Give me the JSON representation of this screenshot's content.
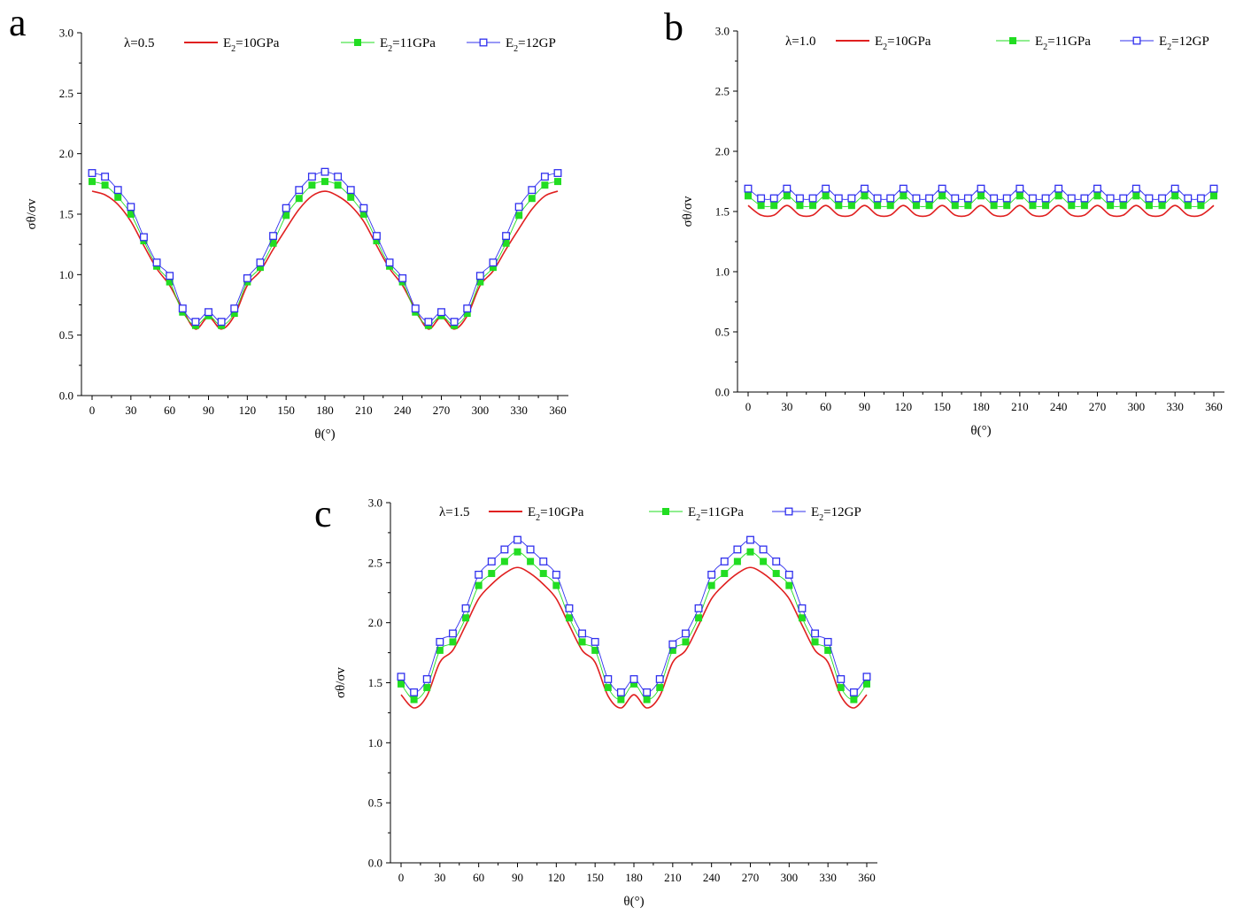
{
  "figure": {
    "x_axis_label": "θ(°)",
    "y_axis_label": "σθ/σv"
  },
  "chart_data": [
    {
      "type": "line",
      "panel": "a",
      "lambda_label": "λ=0.5",
      "xlim": [
        0,
        360
      ],
      "ylim": [
        0.0,
        3.0
      ],
      "x_ticks": [
        0,
        30,
        60,
        90,
        120,
        150,
        180,
        210,
        240,
        270,
        300,
        330,
        360
      ],
      "y_ticks": [
        "0.0",
        "0.5",
        "1.0",
        "1.5",
        "2.0",
        "2.5",
        "3.0"
      ],
      "xlabel": "θ(°)",
      "ylabel": "σθ/σv",
      "x": [
        0,
        10,
        20,
        30,
        40,
        50,
        60,
        70,
        80,
        90,
        100,
        110,
        120,
        130,
        140,
        150,
        160,
        170,
        180,
        190,
        200,
        210,
        220,
        230,
        240,
        250,
        260,
        270,
        280,
        290,
        300,
        310,
        320,
        330,
        340,
        350,
        360
      ],
      "series": [
        {
          "name": "E2=10GPa",
          "legend_main": "E",
          "legend_sub": "2",
          "legend_rest": "=10GPa",
          "color": "#e02020",
          "marker": "none",
          "values": [
            1.69,
            1.66,
            1.58,
            1.44,
            1.24,
            1.05,
            0.91,
            0.71,
            0.55,
            0.65,
            0.55,
            0.66,
            0.91,
            1.03,
            1.21,
            1.38,
            1.54,
            1.65,
            1.69,
            1.65,
            1.57,
            1.44,
            1.24,
            1.05,
            0.91,
            0.71,
            0.55,
            0.65,
            0.55,
            0.66,
            0.91,
            1.03,
            1.21,
            1.38,
            1.54,
            1.65,
            1.69
          ]
        },
        {
          "name": "E2=11GPa",
          "legend_main": "E",
          "legend_sub": "2",
          "legend_rest": "=11GPa",
          "color": "#22dd22",
          "marker": "filled-square",
          "values": [
            1.77,
            1.74,
            1.64,
            1.5,
            1.28,
            1.07,
            0.94,
            0.69,
            0.58,
            0.66,
            0.58,
            0.68,
            0.94,
            1.06,
            1.26,
            1.49,
            1.63,
            1.74,
            1.77,
            1.74,
            1.64,
            1.5,
            1.28,
            1.07,
            0.94,
            0.69,
            0.58,
            0.66,
            0.58,
            0.68,
            0.94,
            1.06,
            1.26,
            1.49,
            1.63,
            1.74,
            1.77
          ]
        },
        {
          "name": "E2=12GP",
          "legend_main": "E",
          "legend_sub": "2",
          "legend_rest": "=12GP",
          "color": "#3030ee",
          "marker": "open-square",
          "values": [
            1.84,
            1.81,
            1.7,
            1.56,
            1.31,
            1.1,
            0.99,
            0.72,
            0.61,
            0.69,
            0.61,
            0.72,
            0.97,
            1.1,
            1.32,
            1.55,
            1.7,
            1.81,
            1.85,
            1.81,
            1.7,
            1.55,
            1.32,
            1.1,
            0.97,
            0.72,
            0.61,
            0.69,
            0.61,
            0.72,
            0.99,
            1.1,
            1.32,
            1.56,
            1.7,
            1.81,
            1.84
          ]
        }
      ]
    },
    {
      "type": "line",
      "panel": "b",
      "lambda_label": "λ=1.0",
      "xlim": [
        0,
        360
      ],
      "ylim": [
        0.0,
        3.0
      ],
      "x_ticks": [
        0,
        30,
        60,
        90,
        120,
        150,
        180,
        210,
        240,
        270,
        300,
        330,
        360
      ],
      "y_ticks": [
        "0.0",
        "0.5",
        "1.0",
        "1.5",
        "2.0",
        "2.5",
        "3.0"
      ],
      "xlabel": "θ(°)",
      "ylabel": "σθ/σv",
      "x": [
        0,
        10,
        20,
        30,
        40,
        50,
        60,
        70,
        80,
        90,
        100,
        110,
        120,
        130,
        140,
        150,
        160,
        170,
        180,
        190,
        200,
        210,
        220,
        230,
        240,
        250,
        260,
        270,
        280,
        290,
        300,
        310,
        320,
        330,
        340,
        350,
        360
      ],
      "series": [
        {
          "name": "E2=10GPa",
          "legend_main": "E",
          "legend_sub": "2",
          "legend_rest": "=10GPa",
          "color": "#e02020",
          "marker": "none",
          "values": [
            1.55,
            1.47,
            1.47,
            1.55,
            1.47,
            1.47,
            1.55,
            1.47,
            1.47,
            1.55,
            1.47,
            1.47,
            1.55,
            1.47,
            1.47,
            1.55,
            1.47,
            1.47,
            1.55,
            1.47,
            1.47,
            1.55,
            1.47,
            1.47,
            1.55,
            1.47,
            1.47,
            1.55,
            1.47,
            1.47,
            1.55,
            1.47,
            1.47,
            1.55,
            1.47,
            1.47,
            1.55
          ]
        },
        {
          "name": "E2=11GPa",
          "legend_main": "E",
          "legend_sub": "2",
          "legend_rest": "=11GPa",
          "color": "#22dd22",
          "marker": "filled-square",
          "values": [
            1.63,
            1.55,
            1.55,
            1.63,
            1.55,
            1.55,
            1.63,
            1.55,
            1.55,
            1.63,
            1.55,
            1.55,
            1.63,
            1.55,
            1.55,
            1.63,
            1.55,
            1.55,
            1.63,
            1.55,
            1.55,
            1.63,
            1.55,
            1.55,
            1.63,
            1.55,
            1.55,
            1.63,
            1.55,
            1.55,
            1.63,
            1.55,
            1.55,
            1.63,
            1.55,
            1.55,
            1.63
          ]
        },
        {
          "name": "E2=12GP",
          "legend_main": "E",
          "legend_sub": "2",
          "legend_rest": "=12GP",
          "color": "#3030ee",
          "marker": "open-square",
          "values": [
            1.69,
            1.61,
            1.61,
            1.69,
            1.61,
            1.61,
            1.69,
            1.61,
            1.61,
            1.69,
            1.61,
            1.61,
            1.69,
            1.61,
            1.61,
            1.69,
            1.61,
            1.61,
            1.69,
            1.61,
            1.61,
            1.69,
            1.61,
            1.61,
            1.69,
            1.61,
            1.61,
            1.69,
            1.61,
            1.61,
            1.69,
            1.61,
            1.61,
            1.69,
            1.61,
            1.61,
            1.69
          ]
        }
      ]
    },
    {
      "type": "line",
      "panel": "c",
      "lambda_label": "λ=1.5",
      "xlim": [
        0,
        360
      ],
      "ylim": [
        0.0,
        3.0
      ],
      "x_ticks": [
        0,
        30,
        60,
        90,
        120,
        150,
        180,
        210,
        240,
        270,
        300,
        330,
        360
      ],
      "y_ticks": [
        "0.0",
        "0.5",
        "1.0",
        "1.5",
        "2.0",
        "2.5",
        "3.0"
      ],
      "xlabel": "θ(°)",
      "ylabel": "σθ/σv",
      "x": [
        0,
        10,
        20,
        30,
        40,
        50,
        60,
        70,
        80,
        90,
        100,
        110,
        120,
        130,
        140,
        150,
        160,
        170,
        180,
        190,
        200,
        210,
        220,
        230,
        240,
        250,
        260,
        270,
        280,
        290,
        300,
        310,
        320,
        330,
        340,
        350,
        360
      ],
      "series": [
        {
          "name": "E2=10GPa",
          "legend_main": "E",
          "legend_sub": "2",
          "legend_rest": "=10GPa",
          "color": "#e02020",
          "marker": "none",
          "values": [
            1.4,
            1.29,
            1.39,
            1.67,
            1.77,
            1.98,
            2.2,
            2.32,
            2.41,
            2.46,
            2.41,
            2.32,
            2.2,
            1.98,
            1.77,
            1.67,
            1.39,
            1.29,
            1.4,
            1.29,
            1.39,
            1.67,
            1.77,
            1.98,
            2.2,
            2.32,
            2.41,
            2.46,
            2.41,
            2.32,
            2.2,
            1.98,
            1.77,
            1.67,
            1.39,
            1.29,
            1.4
          ]
        },
        {
          "name": "E2=11GPa",
          "legend_main": "E",
          "legend_sub": "2",
          "legend_rest": "=11GPa",
          "color": "#22dd22",
          "marker": "filled-square",
          "values": [
            1.49,
            1.36,
            1.46,
            1.77,
            1.84,
            2.04,
            2.31,
            2.41,
            2.51,
            2.59,
            2.51,
            2.41,
            2.31,
            2.04,
            1.84,
            1.77,
            1.46,
            1.36,
            1.49,
            1.36,
            1.46,
            1.77,
            1.84,
            2.04,
            2.31,
            2.41,
            2.51,
            2.59,
            2.51,
            2.41,
            2.31,
            2.04,
            1.84,
            1.77,
            1.46,
            1.36,
            1.49
          ]
        },
        {
          "name": "E2=12GP",
          "legend_main": "E",
          "legend_sub": "2",
          "legend_rest": "=12GP",
          "color": "#3030ee",
          "marker": "open-square",
          "values": [
            1.55,
            1.42,
            1.53,
            1.84,
            1.91,
            2.12,
            2.4,
            2.51,
            2.61,
            2.69,
            2.61,
            2.51,
            2.4,
            2.12,
            1.91,
            1.84,
            1.53,
            1.42,
            1.53,
            1.42,
            1.53,
            1.82,
            1.91,
            2.12,
            2.4,
            2.51,
            2.61,
            2.69,
            2.61,
            2.51,
            2.4,
            2.12,
            1.91,
            1.84,
            1.53,
            1.42,
            1.55
          ]
        }
      ]
    }
  ]
}
